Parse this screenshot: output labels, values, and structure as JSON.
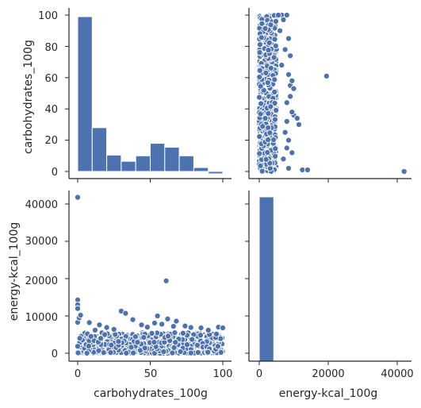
{
  "chart_data": {
    "type": "pairplot",
    "variables": [
      "carbohydrates_100g",
      "energy-kcal_100g"
    ],
    "colors": {
      "series": "#4c72b0",
      "edge": "#ffffff",
      "axis": "#262626"
    },
    "panels": [
      {
        "id": "carb-hist",
        "type": "bar",
        "x_variable": "carbohydrates_100g",
        "bins": [
          {
            "from": 0,
            "to": 10,
            "count": 99
          },
          {
            "from": 10,
            "to": 20,
            "count": 28
          },
          {
            "from": 20,
            "to": 30,
            "count": 10.5
          },
          {
            "from": 30,
            "to": 40,
            "count": 6.5
          },
          {
            "from": 40,
            "to": 50,
            "count": 10
          },
          {
            "from": 50,
            "to": 60,
            "count": 18
          },
          {
            "from": 60,
            "to": 70,
            "count": 15.5
          },
          {
            "from": 70,
            "to": 80,
            "count": 10
          },
          {
            "from": 80,
            "to": 90,
            "count": 2.5
          },
          {
            "from": 90,
            "to": 100,
            "count": -1.5
          }
        ],
        "ylim": [
          -1.5,
          105
        ]
      },
      {
        "id": "energy-vs-carb",
        "type": "scatter",
        "x_variable": "energy-kcal_100g",
        "y_variable": "carbohydrates_100g",
        "xlim": [
          -1500,
          43000
        ],
        "ylim": [
          -3,
          105
        ],
        "dense_region": {
          "x_min": 0,
          "x_max": 5000,
          "y_min": 0,
          "y_max": 100
        },
        "points": [
          [
            19500,
            61
          ],
          [
            42000,
            0
          ],
          [
            10000,
            36
          ],
          [
            11000,
            34
          ],
          [
            11500,
            30
          ],
          [
            9500,
            38
          ],
          [
            12500,
            1
          ],
          [
            14000,
            1
          ],
          [
            8500,
            2
          ],
          [
            9000,
            55
          ],
          [
            6500,
            100
          ],
          [
            8000,
            100
          ],
          [
            5500,
            100
          ],
          [
            7000,
            97
          ],
          [
            8500,
            85
          ],
          [
            9000,
            74
          ],
          [
            8500,
            62
          ],
          [
            9500,
            58
          ],
          [
            10000,
            53
          ],
          [
            8000,
            44
          ],
          [
            9000,
            48
          ],
          [
            7500,
            25
          ],
          [
            8000,
            15
          ],
          [
            7000,
            8
          ],
          [
            6500,
            68
          ],
          [
            6000,
            90
          ],
          [
            7500,
            78
          ],
          [
            8000,
            32
          ],
          [
            8500,
            20
          ],
          [
            9500,
            12
          ]
        ]
      },
      {
        "id": "carb-vs-energy",
        "type": "scatter",
        "x_variable": "carbohydrates_100g",
        "y_variable": "energy-kcal_100g",
        "xlim": [
          -5,
          103
        ],
        "ylim": [
          -1500,
          43500
        ],
        "dense_region": {
          "x_min": 0,
          "x_max": 100,
          "y_min": 0,
          "y_max": 5500
        },
        "points": [
          [
            0,
            41800
          ],
          [
            0,
            14300
          ],
          [
            0,
            13000
          ],
          [
            0,
            12000
          ],
          [
            61,
            19400
          ],
          [
            0,
            8300
          ],
          [
            1,
            9500
          ],
          [
            2,
            10200
          ],
          [
            30,
            11300
          ],
          [
            33,
            10700
          ],
          [
            38,
            9000
          ],
          [
            55,
            10000
          ],
          [
            62,
            9200
          ],
          [
            44,
            7600
          ],
          [
            53,
            8100
          ],
          [
            68,
            8600
          ],
          [
            74,
            7300
          ],
          [
            85,
            6800
          ],
          [
            97,
            7000
          ],
          [
            100,
            6800
          ],
          [
            90,
            6200
          ],
          [
            25,
            6400
          ],
          [
            15,
            7600
          ],
          [
            48,
            7000
          ],
          [
            78,
            6900
          ],
          [
            12,
            6200
          ],
          [
            8,
            8200
          ],
          [
            58,
            7800
          ],
          [
            66,
            7200
          ],
          [
            20,
            6900
          ]
        ]
      },
      {
        "id": "energy-hist",
        "type": "bar",
        "x_variable": "energy-kcal_100g",
        "bins": [
          {
            "from": 0,
            "to": 4200,
            "count": 100
          },
          {
            "from": 4200,
            "to": 8400,
            "count": 0
          },
          {
            "from": 8400,
            "to": 12600,
            "count": 0
          },
          {
            "from": 12600,
            "to": 16800,
            "count": 0
          },
          {
            "from": 16800,
            "to": 21000,
            "count": 0
          },
          {
            "from": 21000,
            "to": 25200,
            "count": 0
          },
          {
            "from": 25200,
            "to": 29400,
            "count": 0
          },
          {
            "from": 29400,
            "to": 33600,
            "count": 0
          },
          {
            "from": 33600,
            "to": 37800,
            "count": 0
          },
          {
            "from": 37800,
            "to": 42000,
            "count": 0
          }
        ],
        "ylim": [
          -1,
          100
        ]
      }
    ],
    "axes": {
      "carb_y_ticks": [
        "0",
        "20",
        "40",
        "60",
        "80",
        "100"
      ],
      "energy_y_ticks": [
        "0",
        "10000",
        "20000",
        "30000",
        "40000"
      ],
      "carb_x_ticks": [
        "0",
        "50",
        "100"
      ],
      "energy_x_ticks": [
        "0",
        "20000",
        "40000"
      ],
      "top_ylabel": "carbohydrates_100g",
      "bottom_ylabel": "energy-kcal_100g",
      "left_xlabel": "carbohydrates_100g",
      "right_xlabel": "energy-kcal_100g"
    }
  }
}
